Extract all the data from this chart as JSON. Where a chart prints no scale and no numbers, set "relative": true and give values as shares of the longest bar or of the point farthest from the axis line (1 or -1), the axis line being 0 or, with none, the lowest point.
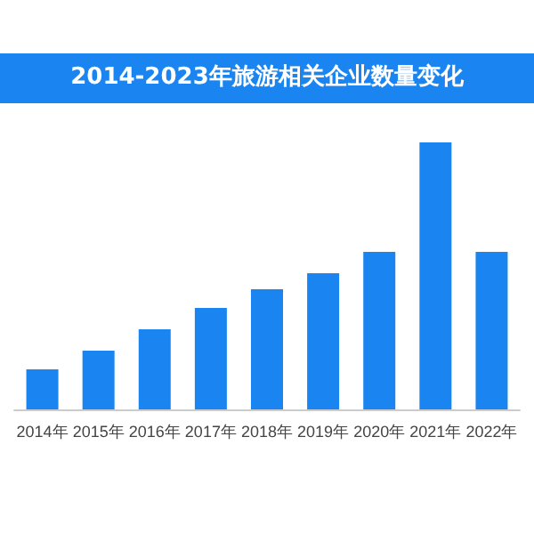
{
  "chart_data": {
    "type": "bar",
    "title": "2014-2023年旅游相关企业数量变化",
    "relative": true,
    "categories": [
      "2014年",
      "2015年",
      "2016年",
      "2017年",
      "2018年",
      "2019年",
      "2020年",
      "2021年",
      "2022年"
    ],
    "values": [
      0.15,
      0.22,
      0.3,
      0.38,
      0.45,
      0.51,
      0.59,
      1,
      0.59
    ],
    "color": "#1a85f0"
  }
}
